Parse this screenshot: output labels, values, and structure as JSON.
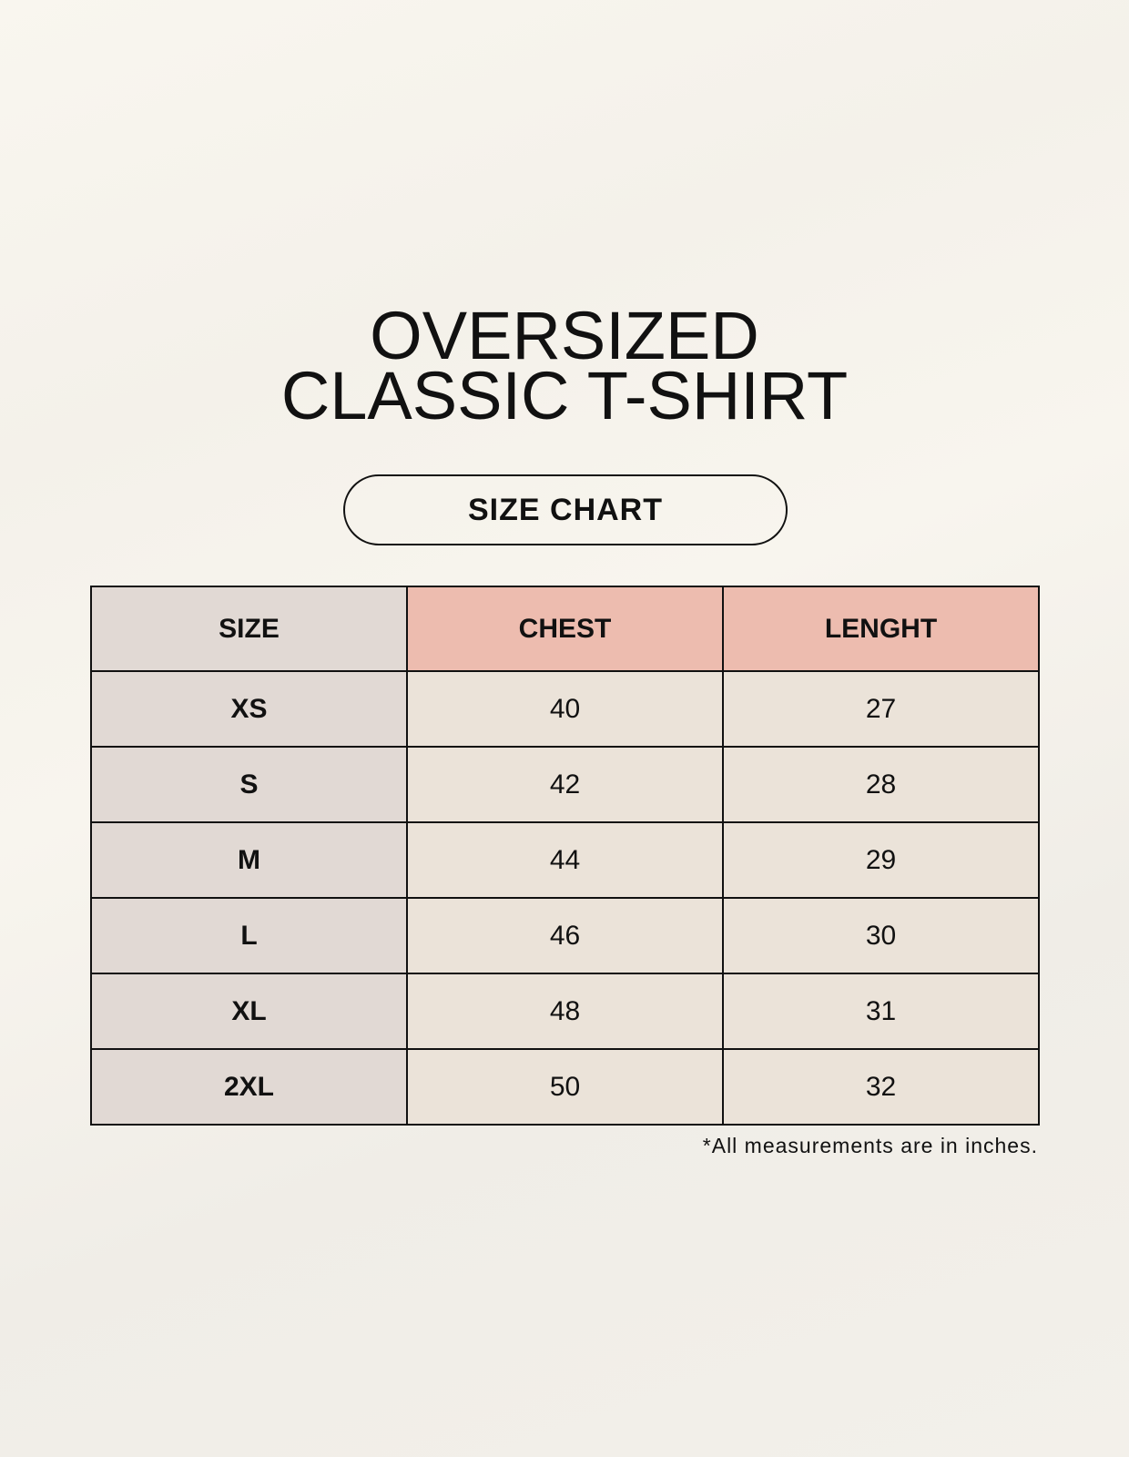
{
  "title": {
    "line1": "OVERSIZED",
    "line2": "CLASSIC T-SHIRT"
  },
  "badge": "SIZE CHART",
  "table": {
    "headers": [
      "SIZE",
      "CHEST",
      "LENGHT"
    ],
    "rows": [
      [
        "XS",
        "40",
        "27"
      ],
      [
        "S",
        "42",
        "28"
      ],
      [
        "M",
        "44",
        "29"
      ],
      [
        "L",
        "46",
        "30"
      ],
      [
        "XL",
        "48",
        "31"
      ],
      [
        "2XL",
        "50",
        "32"
      ]
    ]
  },
  "footnote": "*All measurements are in inches.",
  "colors": {
    "header_accent": "#edbcaf",
    "size_column": "#e1d9d4",
    "cell": "#ebe3d9",
    "background": "#f7f4ed"
  }
}
